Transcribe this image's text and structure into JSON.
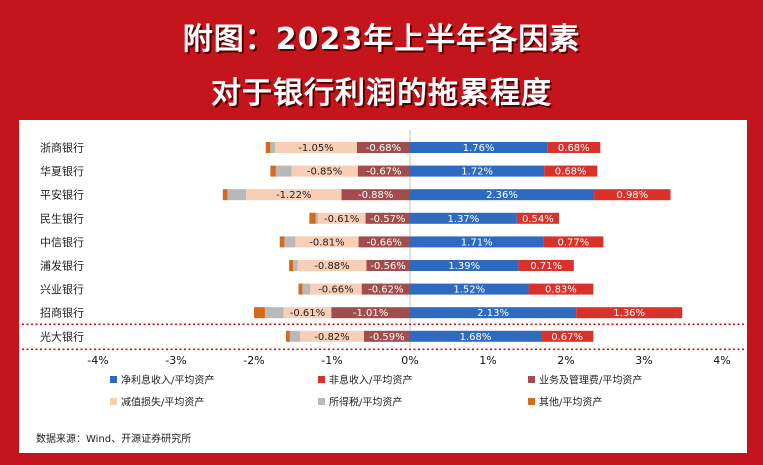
{
  "header": {
    "line1": "附图：2023年上半年各因素",
    "line2": "对于银行利润的拖累程度"
  },
  "source": "数据来源：Wind、开源证券研究所",
  "colors": {
    "frame": "#c4141c",
    "series": [
      "#2e6bc0",
      "#d8322a",
      "#a24d4d",
      "#f7cfb6",
      "#b9b9b9",
      "#d46a1e"
    ]
  },
  "chart_data": {
    "type": "bar",
    "orientation": "horizontal",
    "stacked": true,
    "categories": [
      "浙商银行",
      "华夏银行",
      "平安银行",
      "民生银行",
      "中信银行",
      "浦发银行",
      "兴业银行",
      "招商银行",
      "光大银行"
    ],
    "xlim": [
      -4,
      4
    ],
    "xticks": [
      -4,
      -3,
      -2,
      -1,
      0,
      1,
      2,
      3,
      4
    ],
    "xtick_labels": [
      "-4%",
      "-3%",
      "-2%",
      "-1%",
      "0%",
      "1%",
      "2%",
      "3%",
      "4%"
    ],
    "highlight_category": "光大银行",
    "legend_position": "bottom",
    "series": [
      {
        "name": "净利息收入/平均资产",
        "values": [
          1.76,
          1.72,
          2.36,
          1.37,
          1.71,
          1.39,
          1.52,
          2.13,
          1.68
        ],
        "labels": [
          "1.76%",
          "1.72%",
          "2.36%",
          "1.37%",
          "1.71%",
          "1.39%",
          "1.52%",
          "2.13%",
          "1.68%"
        ]
      },
      {
        "name": "非息收入/平均资产",
        "values": [
          0.68,
          0.68,
          0.98,
          0.54,
          0.77,
          0.71,
          0.83,
          1.36,
          0.67
        ],
        "labels": [
          "0.68%",
          "0.68%",
          "0.98%",
          "0.54%",
          "0.77%",
          "0.71%",
          "0.83%",
          "1.36%",
          "0.67%"
        ]
      },
      {
        "name": "业务及管理费/平均资产",
        "values": [
          -0.68,
          -0.67,
          -0.88,
          -0.57,
          -0.66,
          -0.56,
          -0.62,
          -1.01,
          -0.59
        ],
        "labels": [
          "-0.68%",
          "-0.67%",
          "-0.88%",
          "-0.57%",
          "-0.66%",
          "-0.56%",
          "-0.62%",
          "-1.01%",
          "-0.59%"
        ]
      },
      {
        "name": "减值损失/平均资产",
        "values": [
          -1.05,
          -0.85,
          -1.22,
          -0.61,
          -0.81,
          -0.88,
          -0.66,
          -0.61,
          -0.82
        ],
        "labels": [
          "-1.05%",
          "-0.85%",
          "-1.22%",
          "-0.61%",
          "-0.81%",
          "-0.88%",
          "-0.66%",
          "-0.61%",
          "-0.82%"
        ]
      },
      {
        "name": "所得税/平均资产",
        "values": [
          -0.06,
          -0.2,
          -0.24,
          -0.03,
          -0.14,
          -0.06,
          -0.1,
          -0.24,
          -0.13
        ]
      },
      {
        "name": "其他/平均资产",
        "values": [
          -0.06,
          -0.07,
          -0.06,
          -0.08,
          -0.06,
          -0.05,
          -0.05,
          -0.14,
          -0.05
        ]
      }
    ]
  }
}
